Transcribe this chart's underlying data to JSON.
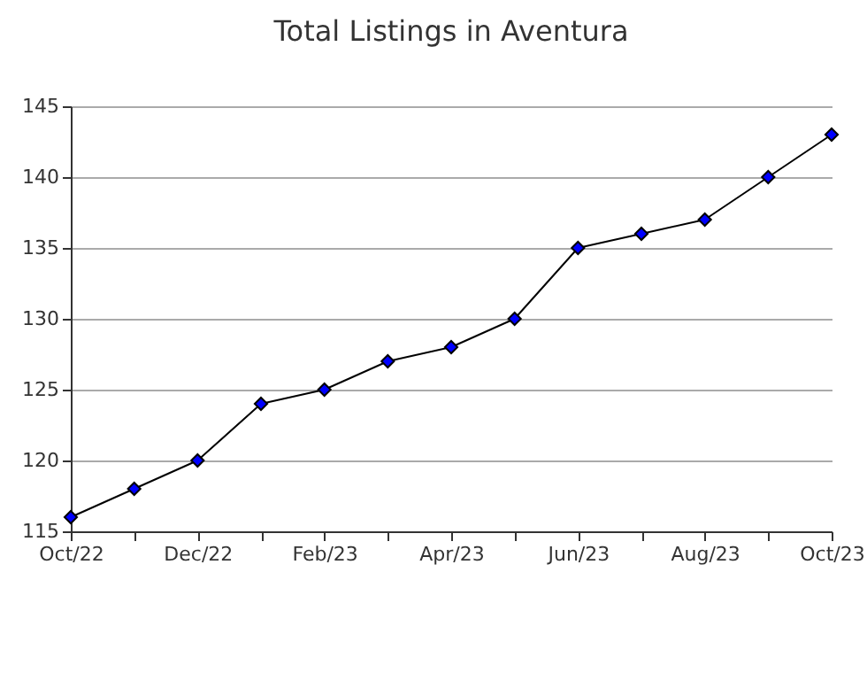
{
  "chart_data": {
    "type": "line",
    "title": "Total Listings in Aventura",
    "categories": [
      "Oct/22",
      null,
      "Dec/22",
      null,
      "Feb/23",
      null,
      "Apr/23",
      null,
      "Jun/23",
      null,
      "Aug/23",
      null,
      "Oct/23"
    ],
    "series": [
      {
        "color": "#0000ff",
        "values": [
          116,
          118,
          120,
          124,
          125,
          127,
          128,
          130,
          135,
          136,
          137,
          140,
          143
        ]
      }
    ],
    "ylim": [
      115,
      145
    ],
    "yticks": [
      115,
      120,
      125,
      130,
      135,
      140,
      145
    ],
    "grid": "y",
    "marker": "diamond",
    "line_style": "solid"
  }
}
